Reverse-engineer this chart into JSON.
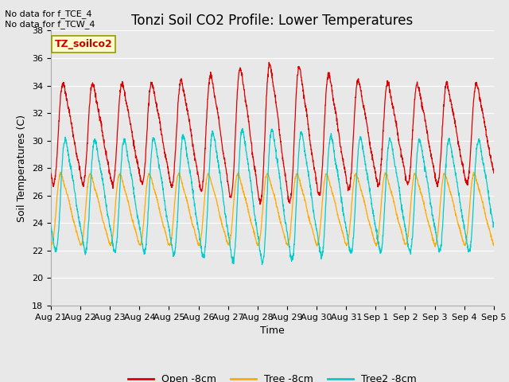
{
  "title": "Tonzi Soil CO2 Profile: Lower Temperatures",
  "ylabel": "Soil Temperatures (C)",
  "xlabel": "Time",
  "annotations": [
    "No data for f_TCE_4",
    "No data for f_TCW_4"
  ],
  "watermark": "TZ_soilco2",
  "ylim": [
    18,
    38
  ],
  "yticks": [
    18,
    20,
    22,
    24,
    26,
    28,
    30,
    32,
    34,
    36,
    38
  ],
  "xtick_labels": [
    "Aug 21",
    "Aug 22",
    "Aug 23",
    "Aug 24",
    "Aug 25",
    "Aug 26",
    "Aug 27",
    "Aug 28",
    "Aug 29",
    "Aug 30",
    "Aug 31",
    "Sep 1",
    "Sep 2",
    "Sep 3",
    "Sep 4",
    "Sep 5"
  ],
  "legend_labels": [
    "Open -8cm",
    "Tree -8cm",
    "Tree2 -8cm"
  ],
  "line_colors": [
    "#dd0000",
    "#ffaa00",
    "#00cccc"
  ],
  "bg_color": "#e8e8e8",
  "grid_color": "#ffffff",
  "title_fontsize": 12,
  "ylabel_fontsize": 9,
  "xlabel_fontsize": 9,
  "tick_fontsize": 8,
  "legend_fontsize": 9,
  "annot_fontsize": 8,
  "watermark_fontsize": 9
}
